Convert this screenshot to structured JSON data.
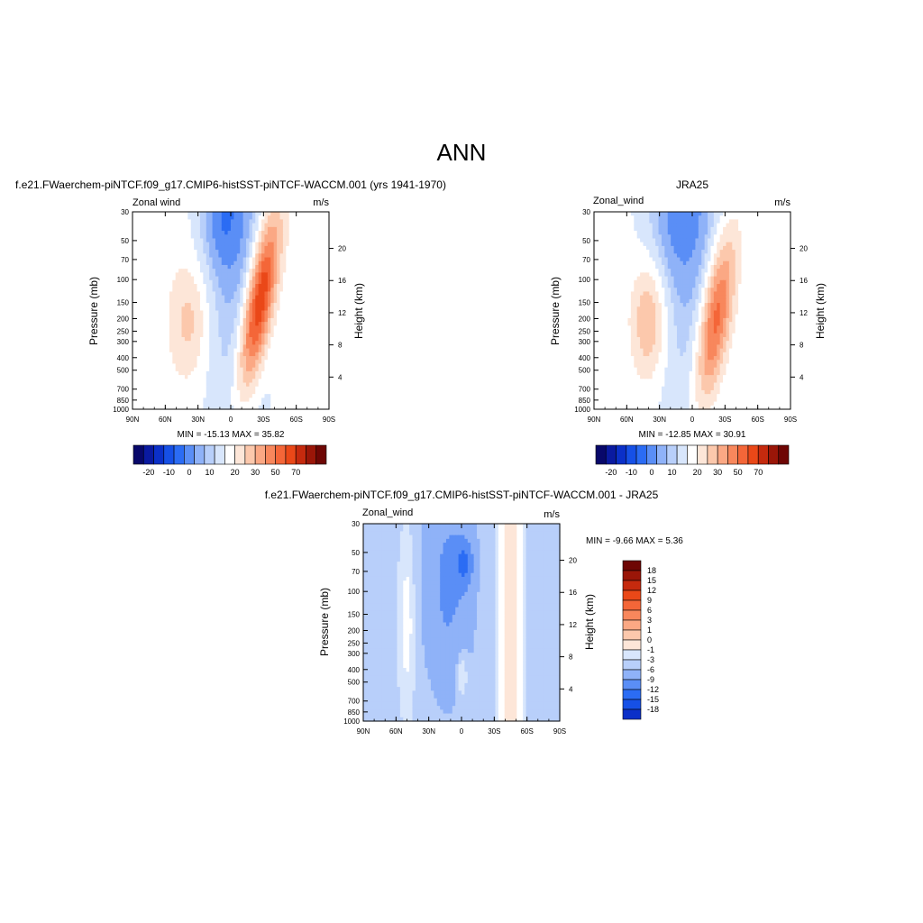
{
  "page_title": "ANN",
  "colors": {
    "blues": [
      "#08086a",
      "#0a1aa0",
      "#0b30c8",
      "#1650e6",
      "#2b6cf4",
      "#5a8ef6",
      "#8fb2f8",
      "#b8cffa",
      "#d8e6fc"
    ],
    "reds": [
      "#fde6d8",
      "#fcc8ac",
      "#fba884",
      "#f8875c",
      "#f46638",
      "#ea4818",
      "#c52a0e",
      "#9a1608",
      "#6e0604"
    ],
    "white": "#ffffff"
  },
  "chart_data": [
    {
      "type": "heatmap",
      "title": "f.e21.FWaerchem-piNTCF.f09_g17.CMIP6-histSST-piNTCF-WACCM.001 (yrs 1941-1970)",
      "left_label": "Zonal wind",
      "right_label": "m/s",
      "ylabel": "Pressure (mb)",
      "y2label": "Height (km)",
      "x_ticks": [
        "90N",
        "60N",
        "30N",
        "0",
        "30S",
        "60S",
        "90S"
      ],
      "y_ticks": [
        "30",
        "50",
        "70",
        "100",
        "150",
        "200",
        "250",
        "300",
        "400",
        "500",
        "700",
        "850",
        "1000"
      ],
      "y2_ticks": [
        "20",
        "16",
        "12",
        "8",
        "4"
      ],
      "ylim": [
        1000,
        30
      ],
      "stats": "MIN = -15.13  MAX =  35.82",
      "min": -15.13,
      "max": 35.82,
      "colorbar_labels": [
        "-20",
        "-10",
        "0",
        "10",
        "20",
        "30",
        "50",
        "70"
      ],
      "colorbar_orientation": "horizontal"
    },
    {
      "type": "heatmap",
      "title": "JRA25",
      "left_label": "Zonal_wind",
      "right_label": "m/s",
      "ylabel": "Pressure (mb)",
      "y2label": "Height (km)",
      "x_ticks": [
        "90N",
        "60N",
        "30N",
        "0",
        "30S",
        "60S",
        "90S"
      ],
      "y_ticks": [
        "30",
        "50",
        "70",
        "100",
        "150",
        "200",
        "250",
        "300",
        "400",
        "500",
        "700",
        "850",
        "1000"
      ],
      "y2_ticks": [
        "20",
        "16",
        "12",
        "8",
        "4"
      ],
      "ylim": [
        1000,
        30
      ],
      "stats": "MIN = -12.85  MAX =  30.91",
      "min": -12.85,
      "max": 30.91,
      "colorbar_labels": [
        "-20",
        "-10",
        "0",
        "10",
        "20",
        "30",
        "50",
        "70"
      ],
      "colorbar_orientation": "horizontal"
    },
    {
      "type": "heatmap",
      "title": "f.e21.FWaerchem-piNTCF.f09_g17.CMIP6-histSST-piNTCF-WACCM.001 - JRA25",
      "left_label": "Zonal_wind",
      "right_label": "m/s",
      "ylabel": "Pressure (mb)",
      "y2label": "Height (km)",
      "x_ticks": [
        "90N",
        "60N",
        "30N",
        "0",
        "30S",
        "60S",
        "90S"
      ],
      "y_ticks": [
        "30",
        "50",
        "70",
        "100",
        "150",
        "200",
        "250",
        "300",
        "400",
        "500",
        "700",
        "850",
        "1000"
      ],
      "y2_ticks": [
        "20",
        "16",
        "12",
        "8",
        "4"
      ],
      "ylim": [
        1000,
        30
      ],
      "stats": "MIN =  -9.66  MAX =   5.36",
      "min": -9.66,
      "max": 5.36,
      "colorbar_labels": [
        "18",
        "15",
        "12",
        "9",
        "6",
        "3",
        "1",
        "0",
        "-1",
        "-3",
        "-6",
        "-9",
        "-12",
        "-15",
        "-18"
      ],
      "colorbar_orientation": "vertical"
    }
  ]
}
